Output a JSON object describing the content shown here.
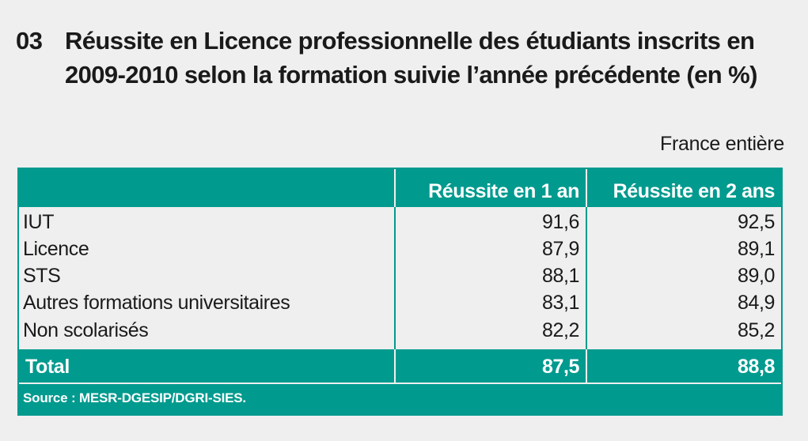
{
  "figure": {
    "number": "03",
    "title": "Réussite en Licence professionnelle des étudiants inscrits en 2009-2010 selon la formation suivie l’année précédente (en %)",
    "scope": "France entière"
  },
  "table": {
    "headers": [
      "",
      "Réussite en 1 an",
      "Réussite en 2 ans"
    ],
    "rows": [
      {
        "label": "IUT",
        "one_year": "91,6",
        "two_years": "92,5"
      },
      {
        "label": "Licence",
        "one_year": "87,9",
        "two_years": "89,1"
      },
      {
        "label": "STS",
        "one_year": "88,1",
        "two_years": "89,0"
      },
      {
        "label": "Autres formations universitaires",
        "one_year": "83,1",
        "two_years": "84,9"
      },
      {
        "label": "Non scolarisés",
        "one_year": "82,2",
        "two_years": "85,2"
      }
    ],
    "total": {
      "label": "Total",
      "one_year": "87,5",
      "two_years": "88,8"
    },
    "source": "Source : MESR-DGESIP/DGRI-SIES."
  },
  "colors": {
    "accent": "#009a8e",
    "background": "#efefef"
  }
}
